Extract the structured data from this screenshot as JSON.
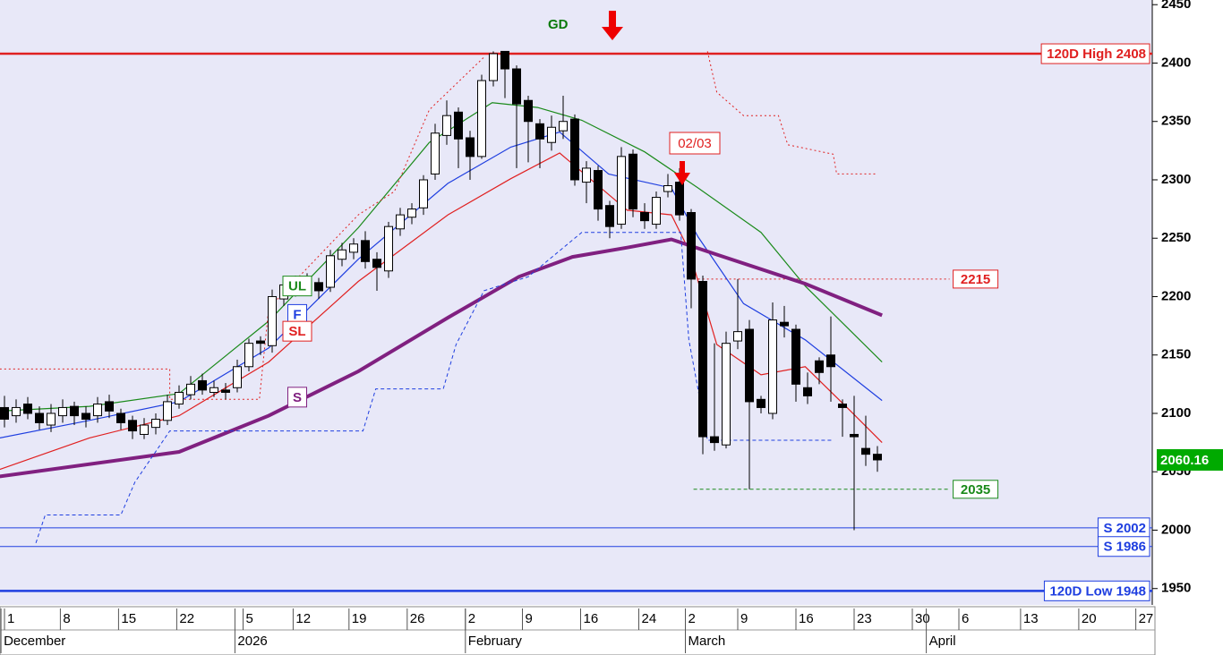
{
  "chart_data": {
    "type": "candlestick",
    "ylim": [
      1936,
      2454
    ],
    "yticks": [
      1950,
      2000,
      2050,
      2100,
      2150,
      2200,
      2250,
      2300,
      2350,
      2400,
      2450
    ],
    "xlim": [
      -0.385,
      98.615
    ],
    "xticks": [
      {
        "value": 0,
        "label": "1"
      },
      {
        "value": 4.8,
        "label": "8"
      },
      {
        "value": 9.8,
        "label": "15"
      },
      {
        "value": 14.8,
        "label": "22"
      },
      {
        "value": 20.5,
        "label": "5"
      },
      {
        "value": 24.8,
        "label": "12"
      },
      {
        "value": 29.6,
        "label": "19"
      },
      {
        "value": 34.6,
        "label": "26"
      },
      {
        "value": 39.6,
        "label": "2"
      },
      {
        "value": 44.5,
        "label": "9"
      },
      {
        "value": 49.5,
        "label": "16"
      },
      {
        "value": 54.5,
        "label": "24"
      },
      {
        "value": 58.5,
        "label": "2"
      },
      {
        "value": 63,
        "label": "9"
      },
      {
        "value": 68,
        "label": "16"
      },
      {
        "value": 73,
        "label": "23"
      },
      {
        "value": 78,
        "label": "30"
      },
      {
        "value": 82,
        "label": "6"
      },
      {
        "value": 87.3,
        "label": "13"
      },
      {
        "value": 92.3,
        "label": "20"
      },
      {
        "value": 97.2,
        "label": "27"
      }
    ],
    "month_ticks": [
      {
        "value": -0.3,
        "label": "December"
      },
      {
        "value": 19.8,
        "label": "2026"
      },
      {
        "value": 39.6,
        "label": "February"
      },
      {
        "value": 58.5,
        "label": "March"
      },
      {
        "value": 79.2,
        "label": "April"
      }
    ],
    "candles": {
      "x": [
        0,
        1,
        2,
        3,
        4,
        5,
        6,
        7,
        8,
        9,
        10,
        11,
        12,
        13,
        14,
        15,
        16,
        17,
        18,
        19,
        20,
        21,
        22,
        23,
        24,
        25,
        26,
        27,
        28,
        29,
        30,
        31,
        32,
        33,
        34,
        35,
        36,
        37,
        38,
        39,
        40,
        41,
        42,
        43,
        44,
        45,
        46,
        47,
        48,
        49,
        50,
        51,
        52,
        53,
        54,
        55,
        56,
        57,
        58,
        59,
        60,
        61,
        62,
        63,
        64,
        65,
        66,
        67,
        68,
        69,
        70,
        71,
        72,
        73,
        74,
        75
      ],
      "open": [
        2105,
        2098,
        2108,
        2100,
        2090,
        2098,
        2106,
        2100,
        2098,
        2110,
        2100,
        2094,
        2082,
        2088,
        2094,
        2108,
        2116,
        2128,
        2118,
        2120,
        2122,
        2140,
        2162,
        2158,
        2198,
        2206,
        2214,
        2212,
        2208,
        2232,
        2238,
        2248,
        2232,
        2222,
        2258,
        2268,
        2276,
        2305,
        2338,
        2358,
        2336,
        2320,
        2385,
        2410,
        2395,
        2368,
        2348,
        2332,
        2342,
        2352,
        2298,
        2308,
        2278,
        2262,
        2322,
        2272,
        2262,
        2290,
        2298,
        2272,
        2213,
        2080,
        2073,
        2162,
        2172,
        2112,
        2100,
        2178,
        2172,
        2122,
        2145,
        2150,
        2108,
        2082,
        2070,
        2065
      ],
      "high": [
        2115,
        2112,
        2114,
        2106,
        2108,
        2112,
        2110,
        2106,
        2114,
        2116,
        2104,
        2098,
        2096,
        2100,
        2116,
        2124,
        2132,
        2134,
        2128,
        2126,
        2146,
        2164,
        2166,
        2206,
        2214,
        2218,
        2220,
        2216,
        2240,
        2246,
        2250,
        2256,
        2238,
        2264,
        2276,
        2280,
        2304,
        2348,
        2368,
        2362,
        2342,
        2390,
        2410,
        2410,
        2398,
        2372,
        2352,
        2355,
        2372,
        2356,
        2316,
        2312,
        2282,
        2328,
        2326,
        2280,
        2290,
        2305,
        2310,
        2275,
        2218,
        2160,
        2170,
        2215,
        2180,
        2115,
        2195,
        2192,
        2176,
        2135,
        2148,
        2183,
        2112,
        2115,
        2098,
        2072
      ],
      "low": [
        2088,
        2092,
        2095,
        2086,
        2084,
        2092,
        2090,
        2088,
        2092,
        2096,
        2086,
        2078,
        2078,
        2082,
        2090,
        2104,
        2112,
        2116,
        2114,
        2112,
        2118,
        2136,
        2150,
        2152,
        2192,
        2200,
        2204,
        2198,
        2204,
        2226,
        2232,
        2224,
        2205,
        2216,
        2252,
        2262,
        2270,
        2300,
        2330,
        2310,
        2300,
        2318,
        2380,
        2370,
        2310,
        2315,
        2310,
        2325,
        2335,
        2295,
        2280,
        2265,
        2250,
        2258,
        2268,
        2258,
        2258,
        2285,
        2265,
        2190,
        2065,
        2068,
        2070,
        2155,
        2035,
        2100,
        2095,
        2165,
        2110,
        2108,
        2125,
        2110,
        2080,
        2000,
        2055,
        2050
      ],
      "close": [
        2095,
        2105,
        2100,
        2092,
        2100,
        2105,
        2098,
        2095,
        2108,
        2102,
        2092,
        2085,
        2090,
        2095,
        2110,
        2118,
        2125,
        2120,
        2122,
        2118,
        2140,
        2160,
        2160,
        2200,
        2210,
        2212,
        2210,
        2205,
        2235,
        2240,
        2245,
        2230,
        2225,
        2260,
        2270,
        2275,
        2300,
        2340,
        2355,
        2335,
        2320,
        2385,
        2408,
        2395,
        2365,
        2350,
        2335,
        2345,
        2350,
        2300,
        2310,
        2275,
        2260,
        2320,
        2275,
        2265,
        2285,
        2295,
        2270,
        2215,
        2080,
        2075,
        2160,
        2170,
        2110,
        2105,
        2180,
        2175,
        2125,
        2115,
        2135,
        2140,
        2105,
        2080,
        2065,
        2060.16
      ]
    },
    "overlays": [
      {
        "name": "UL",
        "color": "#1a8a1a",
        "width": 1.2,
        "x": [
          -0.4,
          7.3,
          15,
          22.7,
          30.4,
          36.5,
          41.9,
          45.8,
          49.6,
          55,
          59.6,
          65,
          68.8,
          75.4
        ],
        "values": [
          2102,
          2106,
          2117,
          2179,
          2259,
          2332,
          2366,
          2362,
          2351,
          2324,
          2293,
          2255,
          2209,
          2144
        ]
      },
      {
        "name": "F",
        "color": "#1f3fe0",
        "width": 1.2,
        "x": [
          -0.4,
          7.3,
          15,
          22.7,
          30.4,
          38.1,
          43.5,
          47.7,
          51.9,
          57.3,
          59.6,
          63.5,
          68.8,
          75.4
        ],
        "values": [
          2079,
          2094,
          2110,
          2156,
          2232,
          2297,
          2328,
          2341,
          2305,
          2293,
          2251,
          2194,
          2163,
          2111
        ]
      },
      {
        "name": "SL",
        "color": "#e02020",
        "width": 1.2,
        "x": [
          -0.4,
          7.3,
          15,
          22.7,
          30.4,
          38.1,
          43.5,
          47.7,
          53.5,
          57.3,
          58.8,
          61.2,
          65,
          68.8,
          72.7,
          75.4
        ],
        "values": [
          2052,
          2079,
          2098,
          2144,
          2213,
          2270,
          2301,
          2323,
          2274,
          2270,
          2240,
          2159,
          2133,
          2140,
          2102,
          2075
        ]
      },
      {
        "name": "S",
        "color": "#802080",
        "width": 4,
        "x": [
          -0.4,
          15,
          22.7,
          30.4,
          38.1,
          44.2,
          48.8,
          53.5,
          57.3,
          61.2,
          68.8,
          75.4
        ],
        "values": [
          2046,
          2067,
          2098,
          2136,
          2182,
          2217,
          2234,
          2242,
          2249,
          2236,
          2211,
          2184
        ]
      },
      {
        "color": "#e02020",
        "width": 1,
        "style": "dotted",
        "x": [
          -0.4,
          14.2,
          14.2,
          21.9,
          22.7,
          30.4,
          33.5,
          36.5,
          41.2,
          50,
          60.4,
          61.2,
          63.5,
          66.5,
          67.3,
          71.2,
          71.5,
          75
        ],
        "values": [
          2138,
          2138,
          2112,
          2112,
          2190,
          2270,
          2290,
          2360,
          2405,
          null,
          2410,
          2375,
          2355,
          2355,
          2330,
          2322,
          2305,
          2305
        ]
      },
      {
        "color": "#1f3fe0",
        "width": 1,
        "style": "dashed",
        "x": [
          2.7,
          3.5,
          3.5,
          10,
          11.2,
          14.2,
          30.8,
          31.9,
          37.7,
          38.8,
          41.2,
          45,
          49.6,
          58.1,
          58.8,
          60.4,
          71.2
        ],
        "values": [
          1989,
          2013,
          2013,
          2013,
          2041,
          2085,
          2085,
          2121,
          2121,
          2159,
          2205,
          2217,
          2255,
          2255,
          2163,
          2077,
          2077
        ]
      }
    ],
    "levels": [
      {
        "value": 2408,
        "label": "120D High 2408",
        "color": "#e02020",
        "width": 2.5
      },
      {
        "value": 2002,
        "label": "S 2002",
        "color": "#1f3fe0",
        "width": 1
      },
      {
        "value": 1986,
        "label": "S 1986",
        "color": "#1f3fe0",
        "width": 1
      },
      {
        "value": 1948,
        "label": "120D Low 1948",
        "color": "#1f3fe0",
        "width": 2.5
      }
    ],
    "partial_levels": [
      {
        "value": 2215,
        "color": "#e02020",
        "style": "dotted",
        "x": [
          59.2,
          81.2
        ]
      },
      {
        "value": 2035,
        "color": "#1a8a1a",
        "style": "dashed",
        "x": [
          59.2,
          81.2
        ]
      }
    ],
    "annotations": {
      "signal": "GD",
      "date_marker": "02/03"
    }
  }
}
